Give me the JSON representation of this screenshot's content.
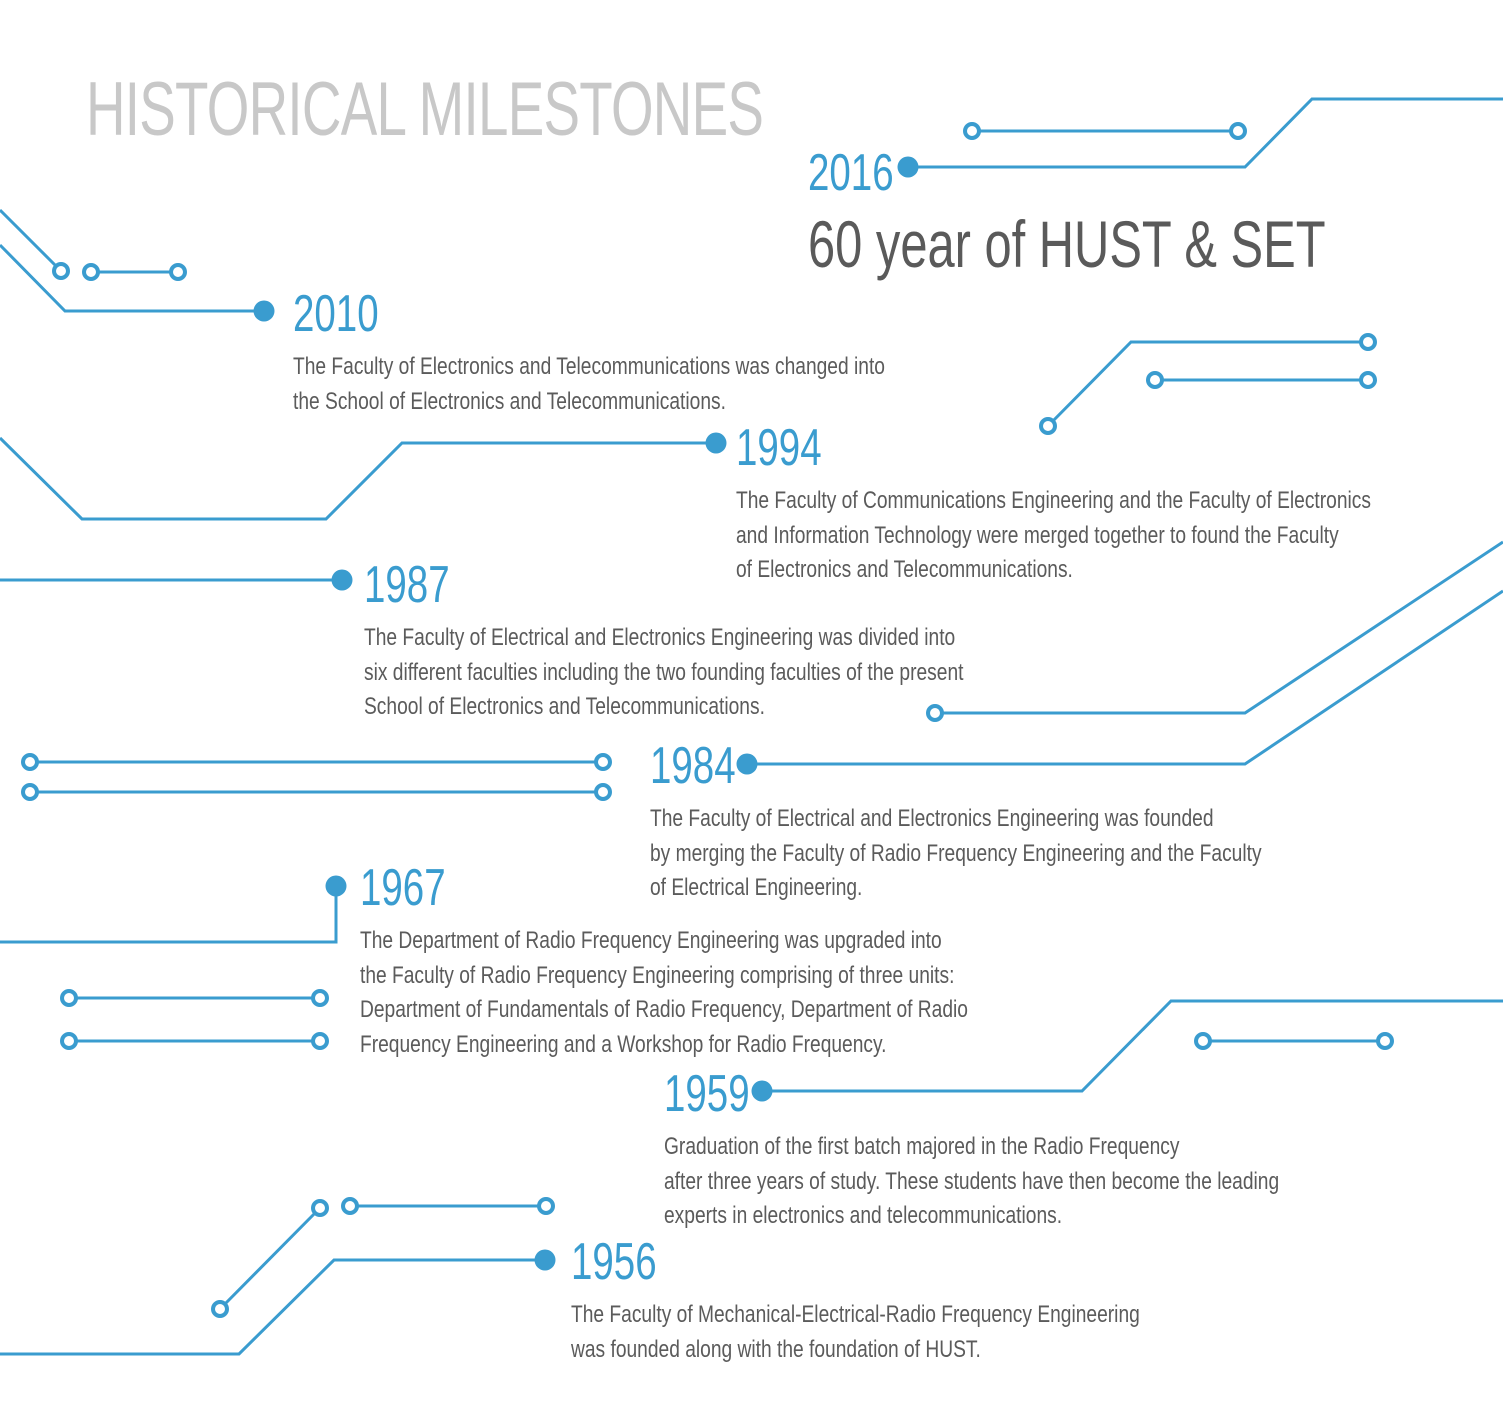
{
  "title": "HISTORICAL MILESTONES",
  "accent_color": "#3a9ccf",
  "milestones": [
    {
      "year": "2016",
      "headline": "60 year of HUST & SET",
      "lines": []
    },
    {
      "year": "2010",
      "lines": [
        "The Faculty of Electronics and Telecommunications was changed into",
        "the School of Electronics and Telecommunications."
      ]
    },
    {
      "year": "1994",
      "lines": [
        "The Faculty of Communications Engineering and the Faculty of Electronics",
        "and Information Technology were merged together to found the Faculty",
        "of Electronics and Telecommunications."
      ]
    },
    {
      "year": "1987",
      "lines": [
        "The Faculty of Electrical and Electronics Engineering was divided into",
        "six different faculties including the two founding faculties of the present",
        "School of Electronics and Telecommunications."
      ]
    },
    {
      "year": "1984",
      "lines": [
        "The Faculty of Electrical and Electronics Engineering was founded",
        "by merging the Faculty of Radio Frequency Engineering and the Faculty",
        "of Electrical Engineering."
      ]
    },
    {
      "year": "1967",
      "lines": [
        "The Department of Radio Frequency Engineering was upgraded into",
        "the Faculty of Radio Frequency Engineering comprising of three units:",
        "Department of Fundamentals of Radio Frequency, Department of Radio",
        "Frequency Engineering and a Workshop for Radio Frequency."
      ]
    },
    {
      "year": "1959",
      "lines": [
        "Graduation of the first batch majored in the Radio Frequency",
        "after three years of study. These students have then become the leading",
        "experts in electronics and telecommunications."
      ]
    },
    {
      "year": "1956",
      "lines": [
        "The Faculty of Mechanical-Electrical-Radio Frequency Engineering",
        "was founded along with the foundation of HUST."
      ]
    }
  ]
}
